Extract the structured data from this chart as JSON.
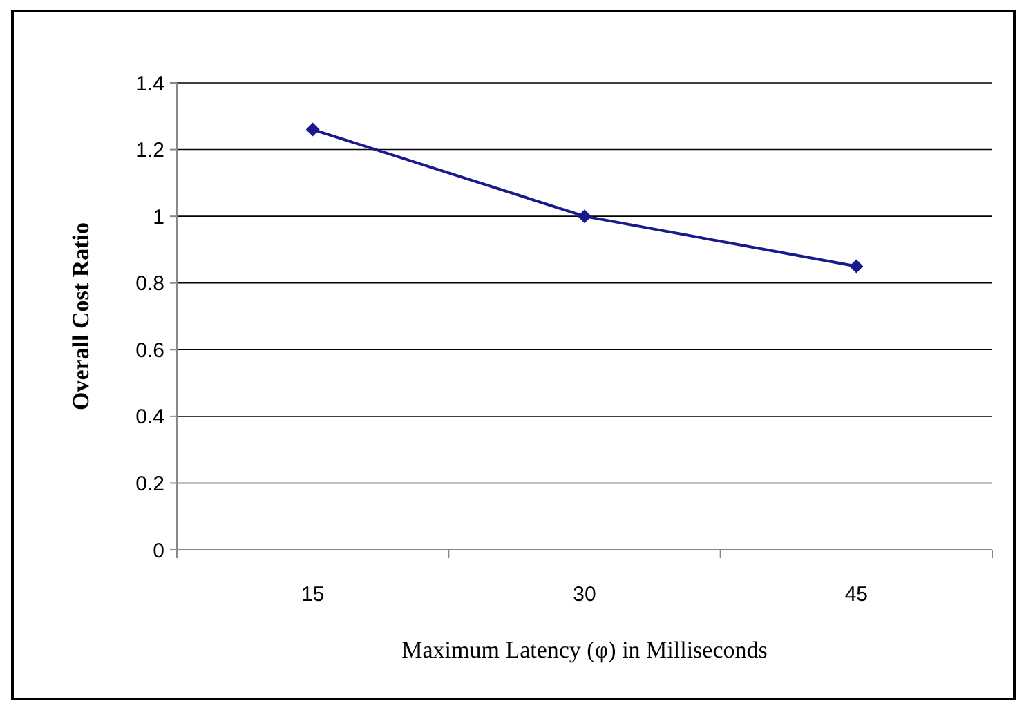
{
  "chart_data": {
    "type": "line",
    "xlabel": "Maximum Latency (φ) in Milliseconds",
    "ylabel": "Overall Cost Ratio",
    "categories": [
      "15",
      "30",
      "45"
    ],
    "series": [
      {
        "color": "#1a1a8c",
        "values": [
          1.26,
          1.0,
          0.85
        ]
      }
    ],
    "ylim": [
      0,
      1.4
    ],
    "yticks": [
      0,
      0.2,
      0.4,
      0.6,
      0.8,
      1,
      1.2,
      1.4
    ],
    "grid": "y",
    "marker": "diamond",
    "line_style": "solid"
  }
}
